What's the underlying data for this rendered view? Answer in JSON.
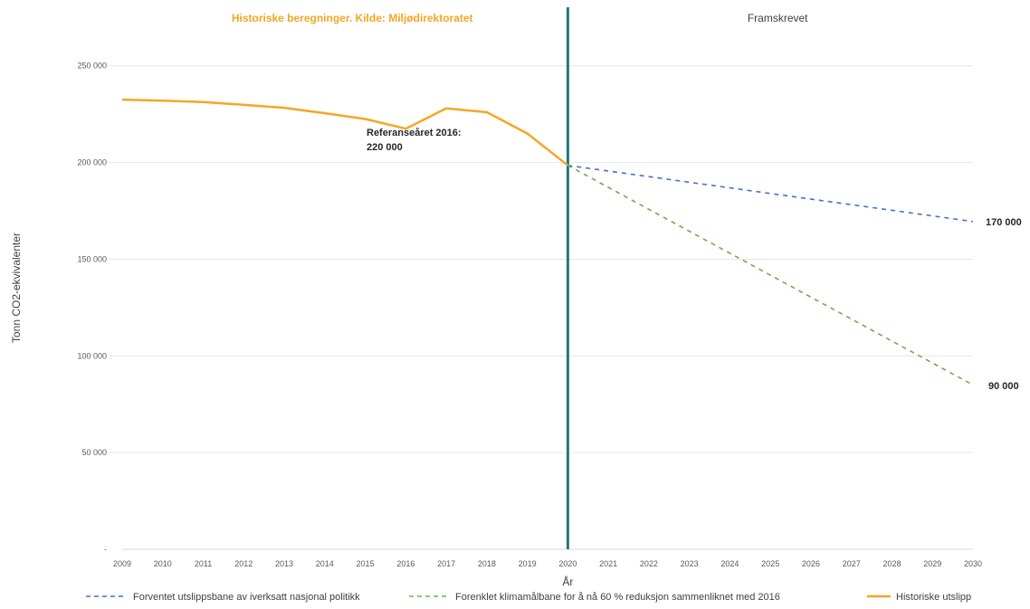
{
  "chart_data": {
    "type": "line",
    "xlabel": "År",
    "ylabel": "Tonn CO2-ekvivalenter",
    "ylim": [
      0,
      270000
    ],
    "xlim": [
      2009,
      2030
    ],
    "y_ticks": [
      {
        "value": 50000,
        "label": "50 000"
      },
      {
        "value": 100000,
        "label": "100 000"
      },
      {
        "value": 150000,
        "label": "150 000"
      },
      {
        "value": 200000,
        "label": "200 000"
      },
      {
        "value": 250000,
        "label": "250 000"
      }
    ],
    "x_ticks": [
      "2009",
      "2010",
      "2011",
      "2012",
      "2013",
      "2014",
      "2015",
      "2016",
      "2017",
      "2018",
      "2019",
      "2020",
      "2021",
      "2022",
      "2023",
      "2024",
      "2025",
      "2026",
      "2027",
      "2028",
      "2029",
      "2030"
    ],
    "grid": "horizontal",
    "legend_position": "bottom",
    "sections": {
      "historical": "Historiske beregninger. Kilde: Miljødirektoratet",
      "projected": "Framskrevet"
    },
    "divider_x": 2020,
    "series": [
      {
        "name": "Historiske utslipp",
        "color": "#f5a623",
        "dash": "solid",
        "x": [
          2009,
          2010,
          2011,
          2012,
          2013,
          2014,
          2015,
          2016,
          2017,
          2018,
          2019,
          2020
        ],
        "y": [
          232500,
          232000,
          231300,
          229800,
          228300,
          225500,
          222500,
          217500,
          228000,
          226000,
          215000,
          198500
        ]
      },
      {
        "name": "Forventet utslippsbane av iverksatt nasjonal politikk",
        "color": "#4472c4",
        "dash": "dashed",
        "x": [
          2020,
          2030
        ],
        "y": [
          198500,
          169500
        ]
      },
      {
        "name": "Forenklet klimamålbane for å nå 60 % reduksjon sammenliknet med 2016",
        "color": "#70ad47",
        "dash": "dashed",
        "x": [
          2020,
          2030
        ],
        "y": [
          198500,
          85000
        ]
      }
    ],
    "annotations": [
      {
        "line1": "Referanseåret 2016:",
        "line2": "220 000",
        "x": 2016,
        "y": 220000
      }
    ],
    "end_labels": [
      {
        "text": "170 000",
        "series": 1
      },
      {
        "text": "90 000",
        "series": 2
      }
    ]
  }
}
